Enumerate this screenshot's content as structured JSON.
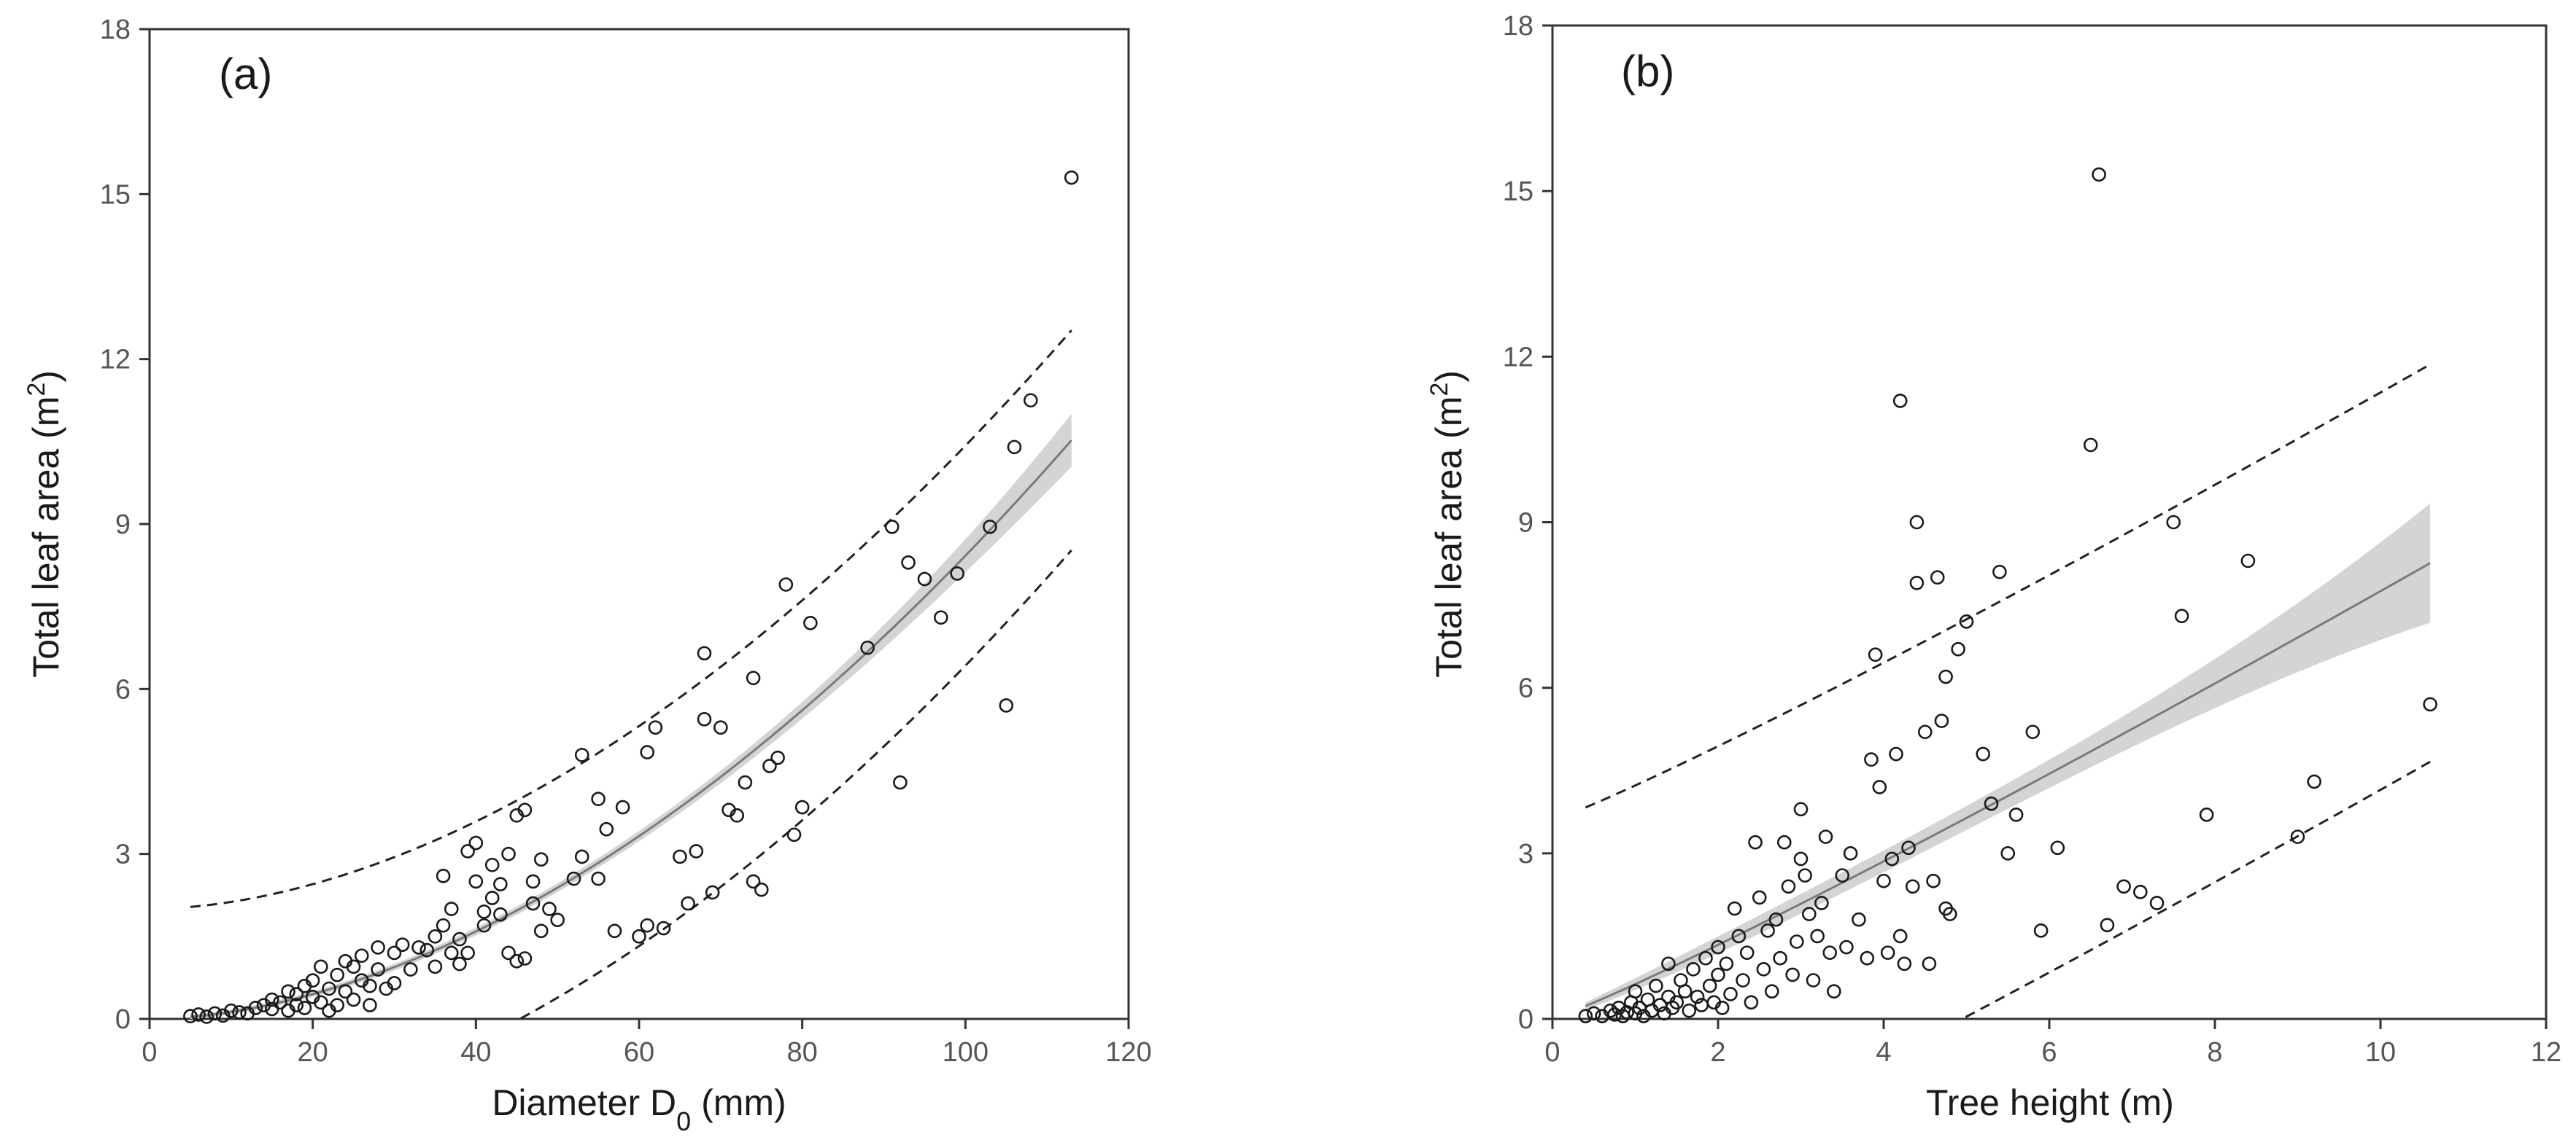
{
  "chart_data": [
    {
      "type": "scatter",
      "panel_label": "(a)",
      "xlabel": "Diameter D",
      "xlabel_sub": "0",
      "xlabel_unit": " (mm)",
      "ylabel": "Total leaf area (m",
      "ylabel_sup": "2",
      "ylabel_end": ")",
      "xlim": [
        0,
        120
      ],
      "ylim": [
        0,
        18
      ],
      "xticks": [
        0,
        20,
        40,
        60,
        80,
        100,
        120
      ],
      "yticks": [
        0,
        3,
        6,
        9,
        12,
        15,
        18
      ],
      "fit": {
        "model": "y = a*x^b",
        "a": 0.00193,
        "b": 1.82,
        "x_range": [
          5,
          113
        ],
        "ci_half_width": 0.04,
        "pi_half_width": 2.0
      },
      "points": [
        [
          5,
          0.05
        ],
        [
          6,
          0.08
        ],
        [
          7,
          0.04
        ],
        [
          8,
          0.1
        ],
        [
          9,
          0.06
        ],
        [
          10,
          0.15
        ],
        [
          11,
          0.12
        ],
        [
          12,
          0.1
        ],
        [
          13,
          0.2
        ],
        [
          14,
          0.25
        ],
        [
          15,
          0.18
        ],
        [
          15,
          0.35
        ],
        [
          16,
          0.3
        ],
        [
          17,
          0.5
        ],
        [
          17,
          0.15
        ],
        [
          18,
          0.45
        ],
        [
          18,
          0.25
        ],
        [
          19,
          0.6
        ],
        [
          19,
          0.2
        ],
        [
          20,
          0.4
        ],
        [
          20,
          0.7
        ],
        [
          21,
          0.95
        ],
        [
          21,
          0.3
        ],
        [
          22,
          0.55
        ],
        [
          22,
          0.15
        ],
        [
          23,
          0.25
        ],
        [
          23,
          0.8
        ],
        [
          24,
          1.05
        ],
        [
          24,
          0.5
        ],
        [
          25,
          0.95
        ],
        [
          25,
          0.35
        ],
        [
          26,
          1.15
        ],
        [
          26,
          0.7
        ],
        [
          27,
          0.6
        ],
        [
          27,
          0.25
        ],
        [
          28,
          1.3
        ],
        [
          28,
          0.9
        ],
        [
          29,
          0.55
        ],
        [
          30,
          1.2
        ],
        [
          30,
          0.65
        ],
        [
          31,
          1.35
        ],
        [
          32,
          0.9
        ],
        [
          33,
          1.3
        ],
        [
          34,
          1.25
        ],
        [
          35,
          1.5
        ],
        [
          35,
          0.95
        ],
        [
          36,
          1.7
        ],
        [
          36,
          2.6
        ],
        [
          37,
          1.2
        ],
        [
          37,
          2.0
        ],
        [
          38,
          1.45
        ],
        [
          38,
          1.0
        ],
        [
          39,
          3.05
        ],
        [
          39,
          1.2
        ],
        [
          40,
          2.5
        ],
        [
          40,
          3.2
        ],
        [
          41,
          1.95
        ],
        [
          41,
          1.7
        ],
        [
          42,
          2.2
        ],
        [
          42,
          2.8
        ],
        [
          43,
          1.9
        ],
        [
          43,
          2.45
        ],
        [
          44,
          3.0
        ],
        [
          44,
          1.2
        ],
        [
          45,
          3.7
        ],
        [
          45,
          1.05
        ],
        [
          46,
          3.8
        ],
        [
          46,
          1.1
        ],
        [
          47,
          2.5
        ],
        [
          47,
          2.1
        ],
        [
          48,
          2.9
        ],
        [
          48,
          1.6
        ],
        [
          49,
          2.0
        ],
        [
          50,
          1.8
        ],
        [
          52,
          2.55
        ],
        [
          53,
          4.8
        ],
        [
          53,
          2.95
        ],
        [
          55,
          4.0
        ],
        [
          55,
          2.55
        ],
        [
          56,
          3.45
        ],
        [
          57,
          1.6
        ],
        [
          58,
          3.85
        ],
        [
          60,
          1.5
        ],
        [
          61,
          4.85
        ],
        [
          61,
          1.7
        ],
        [
          62,
          5.3
        ],
        [
          63,
          1.65
        ],
        [
          65,
          2.95
        ],
        [
          66,
          2.1
        ],
        [
          67,
          3.05
        ],
        [
          68,
          6.65
        ],
        [
          68,
          5.45
        ],
        [
          69,
          2.3
        ],
        [
          70,
          5.3
        ],
        [
          71,
          3.8
        ],
        [
          72,
          3.7
        ],
        [
          73,
          4.3
        ],
        [
          74,
          6.2
        ],
        [
          74,
          2.5
        ],
        [
          75,
          2.35
        ],
        [
          76,
          4.6
        ],
        [
          77,
          4.75
        ],
        [
          78,
          7.9
        ],
        [
          79,
          3.35
        ],
        [
          80,
          3.85
        ],
        [
          81,
          7.2
        ],
        [
          88,
          6.75
        ],
        [
          91,
          8.95
        ],
        [
          92,
          4.3
        ],
        [
          93,
          8.3
        ],
        [
          95,
          8.0
        ],
        [
          97,
          7.3
        ],
        [
          99,
          8.1
        ],
        [
          103,
          8.95
        ],
        [
          105,
          5.7
        ],
        [
          106,
          10.4
        ],
        [
          108,
          11.25
        ],
        [
          113,
          15.3
        ]
      ]
    },
    {
      "type": "scatter",
      "panel_label": "(b)",
      "xlabel": "Tree height (m)",
      "ylabel": "Total leaf area (m",
      "ylabel_sup": "2",
      "ylabel_end": ")",
      "xlim": [
        0,
        12
      ],
      "ylim": [
        0,
        18
      ],
      "xticks": [
        0,
        2,
        4,
        6,
        8,
        10,
        12
      ],
      "yticks": [
        0,
        3,
        6,
        9,
        12,
        15,
        18
      ],
      "fit": {
        "model": "y = a*x^b",
        "a": 0.63,
        "b": 1.09,
        "x_range": [
          0.4,
          10.6
        ],
        "ci_half_width": 0.12,
        "pi_offset": 3.6
      },
      "points": [
        [
          0.4,
          0.05
        ],
        [
          0.5,
          0.1
        ],
        [
          0.6,
          0.05
        ],
        [
          0.7,
          0.15
        ],
        [
          0.75,
          0.08
        ],
        [
          0.8,
          0.2
        ],
        [
          0.85,
          0.05
        ],
        [
          0.9,
          0.12
        ],
        [
          0.95,
          0.3
        ],
        [
          1.0,
          0.1
        ],
        [
          1.0,
          0.5
        ],
        [
          1.05,
          0.2
        ],
        [
          1.1,
          0.05
        ],
        [
          1.15,
          0.35
        ],
        [
          1.2,
          0.15
        ],
        [
          1.25,
          0.6
        ],
        [
          1.3,
          0.25
        ],
        [
          1.35,
          0.1
        ],
        [
          1.4,
          1.0
        ],
        [
          1.4,
          0.4
        ],
        [
          1.45,
          0.2
        ],
        [
          1.5,
          0.3
        ],
        [
          1.55,
          0.7
        ],
        [
          1.6,
          0.5
        ],
        [
          1.65,
          0.15
        ],
        [
          1.7,
          0.9
        ],
        [
          1.75,
          0.4
        ],
        [
          1.8,
          0.25
        ],
        [
          1.85,
          1.1
        ],
        [
          1.9,
          0.6
        ],
        [
          1.95,
          0.3
        ],
        [
          2.0,
          1.3
        ],
        [
          2.0,
          0.8
        ],
        [
          2.05,
          0.2
        ],
        [
          2.1,
          1.0
        ],
        [
          2.15,
          0.45
        ],
        [
          2.2,
          2.0
        ],
        [
          2.25,
          1.5
        ],
        [
          2.3,
          0.7
        ],
        [
          2.35,
          1.2
        ],
        [
          2.4,
          0.3
        ],
        [
          2.45,
          3.2
        ],
        [
          2.5,
          2.2
        ],
        [
          2.55,
          0.9
        ],
        [
          2.6,
          1.6
        ],
        [
          2.65,
          0.5
        ],
        [
          2.7,
          1.8
        ],
        [
          2.75,
          1.1
        ],
        [
          2.8,
          3.2
        ],
        [
          2.85,
          2.4
        ],
        [
          2.9,
          0.8
        ],
        [
          2.95,
          1.4
        ],
        [
          3.0,
          3.8
        ],
        [
          3.0,
          2.9
        ],
        [
          3.05,
          2.6
        ],
        [
          3.1,
          1.9
        ],
        [
          3.15,
          0.7
        ],
        [
          3.2,
          1.5
        ],
        [
          3.25,
          2.1
        ],
        [
          3.3,
          3.3
        ],
        [
          3.35,
          1.2
        ],
        [
          3.4,
          0.5
        ],
        [
          3.5,
          2.6
        ],
        [
          3.55,
          1.3
        ],
        [
          3.6,
          3.0
        ],
        [
          3.7,
          1.8
        ],
        [
          3.8,
          1.1
        ],
        [
          3.85,
          4.7
        ],
        [
          3.9,
          6.6
        ],
        [
          3.95,
          4.2
        ],
        [
          4.0,
          2.5
        ],
        [
          4.05,
          1.2
        ],
        [
          4.1,
          2.9
        ],
        [
          4.15,
          4.8
        ],
        [
          4.2,
          11.2
        ],
        [
          4.2,
          1.5
        ],
        [
          4.25,
          1.0
        ],
        [
          4.3,
          3.1
        ],
        [
          4.35,
          2.4
        ],
        [
          4.4,
          9.0
        ],
        [
          4.4,
          7.9
        ],
        [
          4.5,
          5.2
        ],
        [
          4.55,
          1.0
        ],
        [
          4.6,
          2.5
        ],
        [
          4.65,
          8.0
        ],
        [
          4.7,
          5.4
        ],
        [
          4.75,
          6.2
        ],
        [
          4.75,
          2.0
        ],
        [
          4.8,
          1.9
        ],
        [
          4.9,
          6.7
        ],
        [
          5.0,
          7.2
        ],
        [
          5.2,
          4.8
        ],
        [
          5.3,
          3.9
        ],
        [
          5.4,
          8.1
        ],
        [
          5.5,
          3.0
        ],
        [
          5.6,
          3.7
        ],
        [
          5.8,
          5.2
        ],
        [
          5.9,
          1.6
        ],
        [
          6.1,
          3.1
        ],
        [
          6.5,
          10.4
        ],
        [
          6.6,
          15.3
        ],
        [
          6.7,
          1.7
        ],
        [
          6.9,
          2.4
        ],
        [
          7.1,
          2.3
        ],
        [
          7.3,
          2.1
        ],
        [
          7.5,
          9.0
        ],
        [
          7.6,
          7.3
        ],
        [
          7.9,
          3.7
        ],
        [
          8.4,
          8.3
        ],
        [
          9.0,
          3.3
        ],
        [
          9.2,
          4.3
        ],
        [
          10.6,
          5.7
        ]
      ]
    }
  ]
}
